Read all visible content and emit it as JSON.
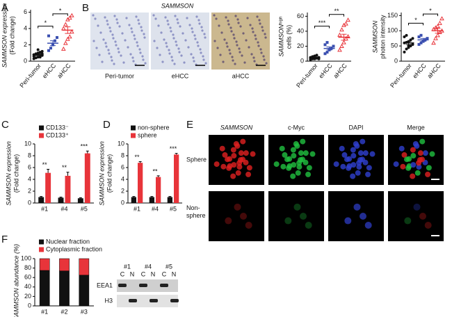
{
  "panel_labels": [
    "A",
    "B",
    "C",
    "D",
    "E",
    "F"
  ],
  "images_B": {
    "title": "SAMMSON",
    "labels": [
      "Peri-tumor",
      "eHCC",
      "aHCC"
    ]
  },
  "images_E": {
    "columns": [
      "SAMMSON",
      "c-Myc",
      "DAPI",
      "Merge"
    ],
    "rows": [
      [
        "Sphere"
      ],
      [
        "Non-",
        "sphere"
      ]
    ]
  },
  "blot": {
    "lanes": [
      "#1",
      "#4",
      "#5"
    ],
    "fractions": [
      "C",
      "N",
      "C",
      "N",
      "C",
      "N"
    ],
    "rows": [
      "EEA1",
      "H3"
    ]
  },
  "chart_data": [
    {
      "type": "dot",
      "ylabel": [
        "SAMMSON expression",
        "(Fold change)"
      ],
      "ylim": [
        0,
        6.3
      ],
      "yticks": [
        0,
        2,
        4,
        6
      ],
      "categories": [
        "Peri-tumor",
        "eHCC",
        "aHCC"
      ],
      "annotations": [
        "*",
        "*"
      ],
      "groups": [
        {
          "color": "#111111",
          "marker": "circle",
          "values": [
            0.3,
            0.4,
            0.5,
            0.6,
            0.7,
            0.8,
            0.9,
            1.0,
            1.1,
            1.2,
            0.6,
            0.8,
            1.4,
            0.5,
            0.9
          ],
          "mean": 0.8,
          "sem": 0.1
        },
        {
          "color": "#3a4fb0",
          "marker": "square",
          "values": [
            1.3,
            1.6,
            2.0,
            2.5,
            2.9,
            3.1
          ],
          "mean": 2.2,
          "sem": 0.3
        },
        {
          "color": "#e8343a",
          "marker": "triangle",
          "values": [
            1.5,
            2.2,
            2.7,
            3.0,
            3.6,
            4.0,
            4.5,
            5.1,
            5.3,
            5.6
          ],
          "mean": 3.8,
          "sem": 0.4
        }
      ]
    },
    {
      "type": "dot",
      "ylabel": [
        "SAMMSONʰⁱᵍʰ",
        "cells (%)"
      ],
      "ylim": [
        0,
        65
      ],
      "yticks": [
        0,
        20,
        40,
        60
      ],
      "categories": [
        "Peri-tumor",
        "eHCC",
        "aHCC"
      ],
      "annotations": [
        "***",
        "**"
      ],
      "groups": [
        {
          "color": "#111111",
          "marker": "circle",
          "values": [
            2,
            3,
            3,
            4,
            5,
            5,
            6,
            7,
            8,
            3,
            4,
            6
          ],
          "mean": 5,
          "sem": 0.6
        },
        {
          "color": "#3a4fb0",
          "marker": "square",
          "values": [
            10,
            12,
            15,
            17,
            20,
            22,
            25
          ],
          "mean": 17,
          "sem": 2
        },
        {
          "color": "#e8343a",
          "marker": "triangle",
          "values": [
            15,
            20,
            25,
            30,
            33,
            35,
            42,
            48,
            50,
            55
          ],
          "mean": 32,
          "sem": 4
        }
      ]
    },
    {
      "type": "dot",
      "ylabel": [
        "SAMMSON",
        "photon intensity"
      ],
      "ylim": [
        0,
        160
      ],
      "yticks": [
        0,
        50,
        100,
        150
      ],
      "categories": [
        "Peri-tumor",
        "eHCC",
        "aHCC"
      ],
      "annotations": [
        "*",
        "*"
      ],
      "groups": [
        {
          "color": "#111111",
          "marker": "circle",
          "values": [
            30,
            40,
            45,
            50,
            55,
            60,
            62,
            65,
            70,
            75,
            80,
            85,
            50
          ],
          "mean": 60,
          "sem": 5
        },
        {
          "color": "#3a4fb0",
          "marker": "square",
          "values": [
            55,
            60,
            65,
            70,
            75,
            80,
            85
          ],
          "mean": 70,
          "sem": 5
        },
        {
          "color": "#e8343a",
          "marker": "triangle",
          "values": [
            60,
            75,
            85,
            95,
            100,
            105,
            110,
            115,
            125,
            140
          ],
          "mean": 100,
          "sem": 8
        }
      ]
    },
    {
      "type": "bar",
      "ylabel": [
        "SAMMSON expression",
        "(Fold change)"
      ],
      "ylim": [
        0,
        10
      ],
      "yticks": [
        0,
        2,
        4,
        6,
        8,
        10
      ],
      "categories": [
        "#1",
        "#4",
        "#5"
      ],
      "annotations": [
        "**",
        "**",
        "***"
      ],
      "series": [
        {
          "name": "CD133⁻",
          "color": "#111111",
          "values": [
            1.0,
            0.9,
            0.8
          ],
          "errors": [
            0.1,
            0.1,
            0.1
          ]
        },
        {
          "name": "CD133⁺",
          "color": "#e8343a",
          "values": [
            5.1,
            4.6,
            8.4
          ],
          "errors": [
            0.6,
            0.6,
            0.4
          ]
        }
      ]
    },
    {
      "type": "bar",
      "ylabel": [
        "SAMMSON expression",
        "(Fold change)"
      ],
      "ylim": [
        0,
        10
      ],
      "yticks": [
        0,
        2,
        4,
        6,
        8,
        10
      ],
      "categories": [
        "#1",
        "#4",
        "#5"
      ],
      "annotations": [
        "**",
        "**",
        "***"
      ],
      "series": [
        {
          "name": "non-sphere",
          "color": "#111111",
          "values": [
            1.0,
            1.0,
            1.0
          ],
          "errors": [
            0.1,
            0.1,
            0.1
          ]
        },
        {
          "name": "sphere",
          "color": "#e8343a",
          "values": [
            6.8,
            4.4,
            8.2
          ],
          "errors": [
            0.2,
            0.2,
            0.2
          ]
        }
      ]
    },
    {
      "type": "stacked_bar",
      "ylabel": [
        "SAMMSON abundance (%)"
      ],
      "ylim": [
        0,
        100
      ],
      "yticks": [
        0,
        20,
        40,
        60,
        80,
        100
      ],
      "categories": [
        "#1",
        "#2",
        "#3"
      ],
      "series": [
        {
          "name": "Nuclear fraction",
          "color": "#111111",
          "values": [
            75,
            74,
            65
          ]
        },
        {
          "name": "Cytoplasmic fraction",
          "color": "#e8343a",
          "values": [
            25,
            26,
            35
          ]
        }
      ]
    }
  ]
}
